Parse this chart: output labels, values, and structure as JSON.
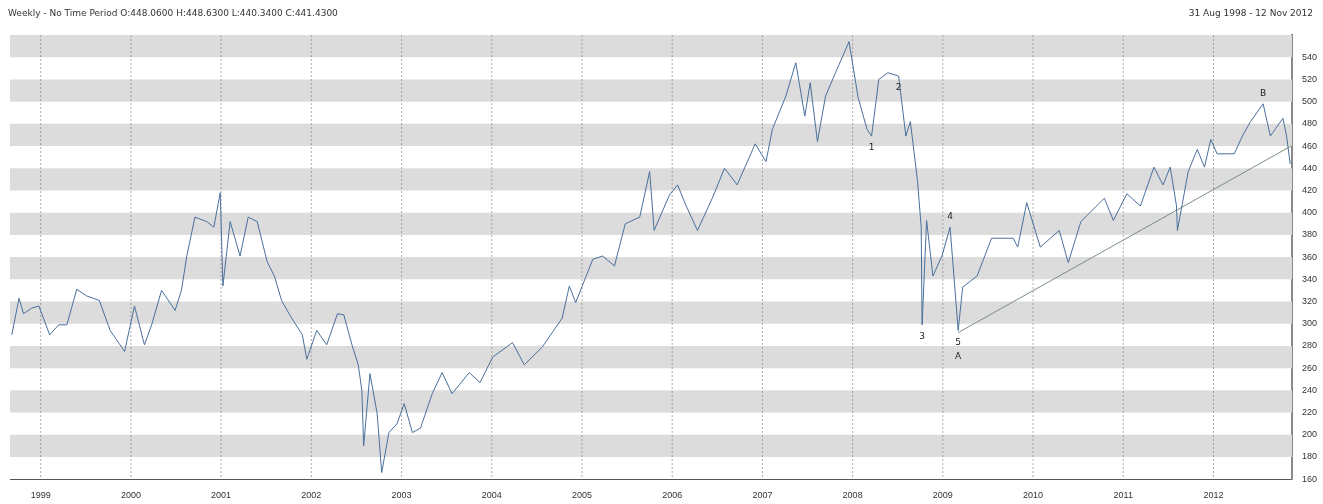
{
  "chart_data": {
    "type": "line",
    "title": "Weekly -  No Time Period O:448.0600 H:448.6300 L:440.3400 C:441.4300",
    "subtitle": "31 Aug 1998  -  12 Nov 2012",
    "xlim": [
      1998.66,
      2012.87
    ],
    "xticks": [
      1999,
      2000,
      2001,
      2002,
      2003,
      2004,
      2005,
      2006,
      2007,
      2008,
      2009,
      2010,
      2011,
      2012
    ],
    "ylim": [
      160,
      560
    ],
    "yticks": [
      160,
      180,
      200,
      220,
      240,
      260,
      280,
      300,
      320,
      340,
      360,
      380,
      400,
      420,
      440,
      460,
      480,
      500,
      520,
      540
    ],
    "grid": true,
    "legend": false,
    "marker": "none",
    "line_style": "solid",
    "series": [
      {
        "color": "#4a6f9c",
        "x": [
          1998.68,
          1998.76,
          1998.81,
          1998.9,
          1998.98,
          1999.1,
          1999.2,
          1999.29,
          1999.4,
          1999.51,
          1999.65,
          1999.77,
          1999.93,
          2000.04,
          2000.15,
          2000.23,
          2000.34,
          2000.49,
          2000.56,
          2000.62,
          2000.71,
          2000.84,
          2000.92,
          2000.99,
          2001.02,
          2001.1,
          2001.21,
          2001.3,
          2001.4,
          2001.51,
          2001.59,
          2001.67,
          2001.76,
          2001.9,
          2001.95,
          2002.06,
          2002.17,
          2002.29,
          2002.36,
          2002.45,
          2002.52,
          2002.56,
          2002.58,
          2002.65,
          2002.73,
          2002.78,
          2002.86,
          2002.95,
          2003.03,
          2003.12,
          2003.21,
          2003.34,
          2003.45,
          2003.56,
          2003.75,
          2003.87,
          2004.01,
          2004.23,
          2004.36,
          2004.56,
          2004.78,
          2004.86,
          2004.93,
          2005.12,
          2005.23,
          2005.36,
          2005.48,
          2005.64,
          2005.75,
          2005.8,
          2005.97,
          2006.06,
          2006.15,
          2006.28,
          2006.45,
          2006.58,
          2006.72,
          2006.92,
          2007.04,
          2007.11,
          2007.26,
          2007.37,
          2007.47,
          2007.53,
          2007.61,
          2007.7,
          2007.81,
          2007.96,
          2008.06,
          2008.16,
          2008.21,
          2008.29,
          2008.39,
          2008.51,
          2008.59,
          2008.64,
          2008.72,
          2008.76,
          2008.77,
          2008.82,
          2008.89,
          2008.99,
          2009.08,
          2009.17,
          2009.22,
          2009.38,
          2009.54,
          2009.78,
          2009.83,
          2009.93,
          2010.08,
          2010.29,
          2010.39,
          2010.53,
          2010.79,
          2010.89,
          2011.04,
          2011.19,
          2011.34,
          2011.44,
          2011.52,
          2011.59,
          2011.6,
          2011.72,
          2011.82,
          2011.9,
          2011.97,
          2012.04,
          2012.23,
          2012.32,
          2012.41,
          2012.55,
          2012.63,
          2012.77,
          2012.81,
          2012.85
        ],
        "values": [
          290,
          323,
          309,
          314,
          316,
          290,
          299,
          299,
          331,
          325,
          321,
          294,
          275,
          316,
          281,
          299,
          330,
          312,
          330,
          361,
          396,
          392,
          387,
          418,
          334,
          392,
          361,
          396,
          392,
          356,
          343,
          321,
          308,
          290,
          268,
          294,
          281,
          309,
          308,
          281,
          263,
          240,
          190,
          255,
          219,
          166,
          202,
          210,
          228,
          202,
          206,
          237,
          256,
          237,
          256,
          247,
          270,
          283,
          263,
          279,
          305,
          334,
          319,
          358,
          361,
          352,
          390,
          396,
          437,
          384,
          416,
          425,
          407,
          384,
          414,
          440,
          425,
          462,
          446,
          475,
          505,
          535,
          487,
          517,
          464,
          505,
          526,
          554,
          504,
          475,
          469,
          520,
          526,
          523,
          469,
          482,
          428,
          387,
          299,
          393,
          343,
          361,
          387,
          294,
          333,
          343,
          377,
          377,
          369,
          409,
          369,
          384,
          355,
          392,
          413,
          393,
          417,
          406,
          441,
          425,
          441,
          406,
          384,
          437,
          457,
          441,
          466,
          453,
          453,
          469,
          482,
          498,
          469,
          485,
          469,
          444
        ]
      },
      {
        "type": "line",
        "color": "#7a8f7a",
        "x": [
          2009.17,
          2012.86
        ],
        "values": [
          292,
          460
        ]
      }
    ],
    "annotations": [
      {
        "text": "1",
        "x": 2008.21,
        "y": 469
      },
      {
        "text": "2",
        "x": 2008.51,
        "y": 523
      },
      {
        "text": "3",
        "x": 2008.77,
        "y": 299
      },
      {
        "text": "4",
        "x": 2009.08,
        "y": 387
      },
      {
        "text": "5",
        "x": 2009.17,
        "y": 294
      },
      {
        "text": "A",
        "x": 2009.17,
        "y": 294
      },
      {
        "text": "B",
        "x": 2012.55,
        "y": 498
      }
    ]
  }
}
